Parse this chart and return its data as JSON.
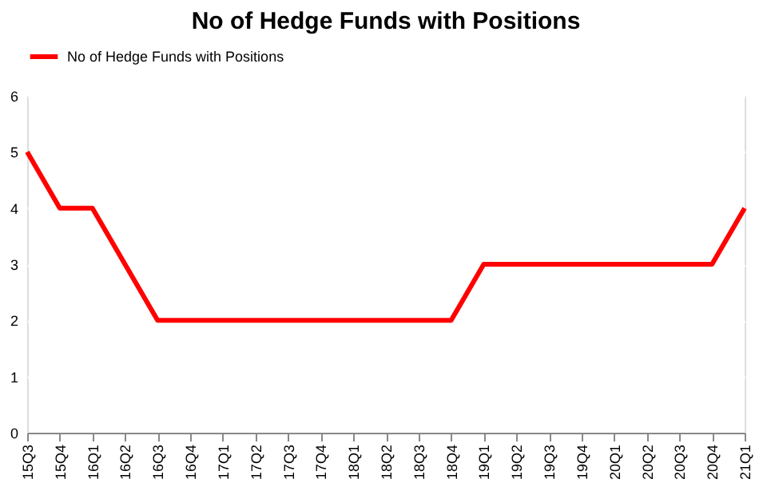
{
  "chart_data": {
    "type": "line",
    "title": "No of Hedge Funds with Positions",
    "categories": [
      "15Q3",
      "15Q4",
      "16Q1",
      "16Q2",
      "16Q3",
      "16Q4",
      "17Q1",
      "17Q2",
      "17Q3",
      "17Q4",
      "18Q1",
      "18Q2",
      "18Q3",
      "18Q4",
      "19Q1",
      "19Q2",
      "19Q3",
      "19Q4",
      "20Q1",
      "20Q2",
      "20Q3",
      "20Q4",
      "21Q1"
    ],
    "series": [
      {
        "name": "No of Hedge Funds with Positions",
        "color": "#ff0000",
        "values": [
          5,
          4,
          4,
          3,
          2,
          2,
          2,
          2,
          2,
          2,
          2,
          2,
          2,
          2,
          3,
          3,
          3,
          3,
          3,
          3,
          3,
          3,
          4
        ]
      }
    ],
    "ylim": [
      0,
      6
    ],
    "yticks": [
      0,
      1,
      2,
      3,
      4,
      5,
      6
    ],
    "grid": "y",
    "legend": "top",
    "marker": "none",
    "line_style": "solid"
  }
}
